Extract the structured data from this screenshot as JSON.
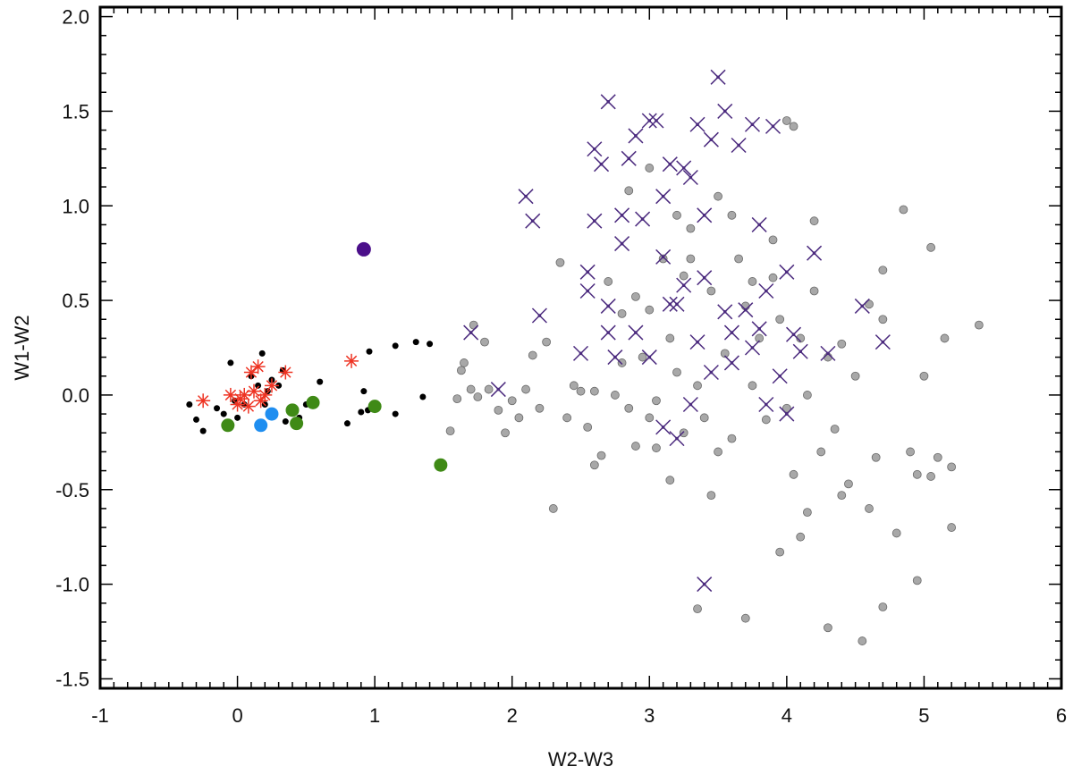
{
  "chart_data": {
    "type": "scatter",
    "title": "",
    "xlabel": "W2-W3",
    "ylabel": "W1-W2",
    "xlim": [
      -1,
      6
    ],
    "ylim": [
      -1.55,
      2.05
    ],
    "xticks": [
      "-1",
      "0",
      "1",
      "2",
      "3",
      "4",
      "5",
      "6"
    ],
    "yticks": [
      "-1.5",
      "-1.0",
      "-0.5",
      "0.0",
      "0.5",
      "1.0",
      "1.5",
      "2.0"
    ],
    "grid": false,
    "legend": "none",
    "series": [
      {
        "marker": "gray-dot",
        "color": "#a8a8a8",
        "points": [
          [
            1.55,
            -0.19
          ],
          [
            1.6,
            -0.02
          ],
          [
            1.63,
            0.13
          ],
          [
            1.65,
            0.17
          ],
          [
            1.7,
            0.03
          ],
          [
            1.72,
            0.37
          ],
          [
            1.75,
            -0.01
          ],
          [
            1.8,
            0.28
          ],
          [
            1.83,
            0.03
          ],
          [
            1.9,
            -0.08
          ],
          [
            1.95,
            -0.2
          ],
          [
            2.0,
            -0.03
          ],
          [
            2.05,
            -0.12
          ],
          [
            2.1,
            0.03
          ],
          [
            2.15,
            0.21
          ],
          [
            2.2,
            -0.07
          ],
          [
            2.25,
            0.28
          ],
          [
            2.3,
            -0.6
          ],
          [
            2.35,
            0.7
          ],
          [
            2.4,
            -0.12
          ],
          [
            2.45,
            0.05
          ],
          [
            2.5,
            0.02
          ],
          [
            2.55,
            -0.17
          ],
          [
            2.6,
            -0.37
          ],
          [
            2.6,
            0.02
          ],
          [
            2.65,
            -0.32
          ],
          [
            2.7,
            0.6
          ],
          [
            2.75,
            0.0
          ],
          [
            2.8,
            0.17
          ],
          [
            2.85,
            -0.07
          ],
          [
            2.9,
            -0.27
          ],
          [
            2.9,
            0.52
          ],
          [
            2.95,
            0.2
          ],
          [
            3.0,
            -0.12
          ],
          [
            3.0,
            0.45
          ],
          [
            3.05,
            -0.03
          ],
          [
            3.1,
            0.72
          ],
          [
            3.15,
            -0.45
          ],
          [
            3.15,
            0.3
          ],
          [
            3.2,
            0.12
          ],
          [
            3.25,
            -0.2
          ],
          [
            3.25,
            0.63
          ],
          [
            3.3,
            0.88
          ],
          [
            3.35,
            0.05
          ],
          [
            3.4,
            -0.12
          ],
          [
            3.45,
            -0.53
          ],
          [
            3.45,
            0.55
          ],
          [
            3.5,
            -0.3
          ],
          [
            3.55,
            0.22
          ],
          [
            3.6,
            -0.23
          ],
          [
            3.65,
            0.72
          ],
          [
            3.7,
            -1.18
          ],
          [
            3.7,
            0.47
          ],
          [
            3.75,
            0.05
          ],
          [
            3.8,
            0.3
          ],
          [
            3.85,
            -0.13
          ],
          [
            3.9,
            0.62
          ],
          [
            3.95,
            0.4
          ],
          [
            4.0,
            -0.07
          ],
          [
            4.0,
            1.45
          ],
          [
            4.05,
            1.42
          ],
          [
            4.05,
            -0.42
          ],
          [
            4.1,
            0.3
          ],
          [
            4.15,
            0.0
          ],
          [
            4.15,
            -0.62
          ],
          [
            4.2,
            0.55
          ],
          [
            4.25,
            -0.3
          ],
          [
            4.3,
            0.2
          ],
          [
            4.35,
            -0.18
          ],
          [
            4.4,
            0.27
          ],
          [
            4.4,
            -0.53
          ],
          [
            4.45,
            -0.47
          ],
          [
            4.5,
            0.1
          ],
          [
            4.55,
            -1.3
          ],
          [
            4.6,
            0.48
          ],
          [
            4.6,
            -0.6
          ],
          [
            4.65,
            -0.33
          ],
          [
            4.7,
            0.4
          ],
          [
            4.7,
            0.66
          ],
          [
            4.8,
            -0.73
          ],
          [
            4.85,
            0.98
          ],
          [
            4.9,
            -0.3
          ],
          [
            4.95,
            -0.42
          ],
          [
            5.0,
            0.1
          ],
          [
            5.05,
            -0.43
          ],
          [
            5.05,
            0.78
          ],
          [
            5.1,
            -0.33
          ],
          [
            5.15,
            0.3
          ],
          [
            5.2,
            -0.7
          ],
          [
            5.2,
            -0.38
          ],
          [
            5.4,
            0.37
          ],
          [
            4.3,
            -1.23
          ],
          [
            3.35,
            -1.13
          ],
          [
            3.95,
            -0.83
          ],
          [
            4.1,
            -0.75
          ],
          [
            4.95,
            -0.98
          ],
          [
            4.7,
            -1.12
          ],
          [
            3.05,
            -0.28
          ],
          [
            3.3,
            0.72
          ],
          [
            3.6,
            0.95
          ],
          [
            2.8,
            0.43
          ],
          [
            2.85,
            1.08
          ],
          [
            3.0,
            1.2
          ],
          [
            3.2,
            0.95
          ],
          [
            3.5,
            1.05
          ],
          [
            3.75,
            0.6
          ],
          [
            3.9,
            0.82
          ],
          [
            4.2,
            0.92
          ]
        ]
      },
      {
        "marker": "purple-x",
        "color": "#4b2a7e",
        "points": [
          [
            1.7,
            0.33
          ],
          [
            1.9,
            0.03
          ],
          [
            2.1,
            1.05
          ],
          [
            2.15,
            0.92
          ],
          [
            2.2,
            0.42
          ],
          [
            2.5,
            0.22
          ],
          [
            2.55,
            0.65
          ],
          [
            2.6,
            1.3
          ],
          [
            2.65,
            1.22
          ],
          [
            2.7,
            1.55
          ],
          [
            2.7,
            0.47
          ],
          [
            2.75,
            0.2
          ],
          [
            2.8,
            0.95
          ],
          [
            2.85,
            1.25
          ],
          [
            2.9,
            1.37
          ],
          [
            2.95,
            0.93
          ],
          [
            3.0,
            1.45
          ],
          [
            3.05,
            1.45
          ],
          [
            3.1,
            1.05
          ],
          [
            3.15,
            1.22
          ],
          [
            3.2,
            0.48
          ],
          [
            3.25,
            1.2
          ],
          [
            3.3,
            1.15
          ],
          [
            3.35,
            1.43
          ],
          [
            3.4,
            0.62
          ],
          [
            3.45,
            1.35
          ],
          [
            3.5,
            1.68
          ],
          [
            3.55,
            1.5
          ],
          [
            3.6,
            0.33
          ],
          [
            3.65,
            1.32
          ],
          [
            3.7,
            0.45
          ],
          [
            3.75,
            1.43
          ],
          [
            3.8,
            0.9
          ],
          [
            3.85,
            0.55
          ],
          [
            3.9,
            1.42
          ],
          [
            4.0,
            0.65
          ],
          [
            4.05,
            0.32
          ],
          [
            4.1,
            0.23
          ],
          [
            4.2,
            0.75
          ],
          [
            4.3,
            0.22
          ],
          [
            4.55,
            0.47
          ],
          [
            4.7,
            0.28
          ],
          [
            3.4,
            -1.0
          ],
          [
            3.2,
            -0.23
          ],
          [
            3.1,
            -0.17
          ],
          [
            3.3,
            -0.05
          ],
          [
            2.6,
            0.92
          ],
          [
            2.8,
            0.8
          ],
          [
            2.9,
            0.33
          ],
          [
            3.0,
            0.2
          ],
          [
            3.15,
            0.48
          ],
          [
            3.25,
            0.58
          ],
          [
            3.35,
            0.28
          ],
          [
            3.45,
            0.12
          ],
          [
            3.55,
            0.44
          ],
          [
            3.75,
            0.25
          ],
          [
            3.85,
            -0.05
          ],
          [
            3.95,
            0.1
          ],
          [
            4.0,
            -0.1
          ],
          [
            2.55,
            0.55
          ],
          [
            2.7,
            0.33
          ],
          [
            3.1,
            0.73
          ],
          [
            3.4,
            0.95
          ],
          [
            3.6,
            0.17
          ],
          [
            3.8,
            0.35
          ]
        ]
      },
      {
        "marker": "black-dot",
        "color": "#000000",
        "points": [
          [
            -0.35,
            -0.05
          ],
          [
            -0.3,
            -0.13
          ],
          [
            -0.25,
            -0.19
          ],
          [
            -0.15,
            -0.07
          ],
          [
            -0.1,
            -0.1
          ],
          [
            -0.05,
            0.17
          ],
          [
            -0.02,
            -0.03
          ],
          [
            0.0,
            -0.12
          ],
          [
            0.05,
            -0.05
          ],
          [
            0.1,
            0.1
          ],
          [
            0.15,
            0.05
          ],
          [
            0.18,
            0.22
          ],
          [
            0.2,
            -0.05
          ],
          [
            0.22,
            0.02
          ],
          [
            0.25,
            0.08
          ],
          [
            0.3,
            0.05
          ],
          [
            0.33,
            0.13
          ],
          [
            0.35,
            -0.14
          ],
          [
            0.45,
            -0.12
          ],
          [
            0.5,
            -0.05
          ],
          [
            0.6,
            0.07
          ],
          [
            0.8,
            -0.15
          ],
          [
            0.9,
            -0.09
          ],
          [
            0.92,
            0.02
          ],
          [
            0.95,
            -0.08
          ],
          [
            0.96,
            0.23
          ],
          [
            1.15,
            -0.1
          ],
          [
            1.15,
            0.26
          ],
          [
            1.3,
            0.28
          ],
          [
            1.35,
            -0.01
          ],
          [
            1.4,
            0.27
          ]
        ]
      },
      {
        "marker": "red-asterisk",
        "color": "#ee3322",
        "points": [
          [
            -0.25,
            -0.03
          ],
          [
            -0.05,
            0.0
          ],
          [
            0.0,
            -0.05
          ],
          [
            0.02,
            -0.02
          ],
          [
            0.05,
            0.0
          ],
          [
            0.08,
            -0.06
          ],
          [
            0.1,
            0.12
          ],
          [
            0.12,
            0.02
          ],
          [
            0.15,
            0.15
          ],
          [
            0.17,
            -0.03
          ],
          [
            0.2,
            0.0
          ],
          [
            0.25,
            0.05
          ],
          [
            0.35,
            0.12
          ],
          [
            0.83,
            0.18
          ]
        ]
      },
      {
        "marker": "green-dot",
        "color": "#3f8a16",
        "points": [
          [
            -0.07,
            -0.16
          ],
          [
            0.4,
            -0.08
          ],
          [
            0.43,
            -0.15
          ],
          [
            0.55,
            -0.04
          ],
          [
            1.0,
            -0.06
          ],
          [
            1.48,
            -0.37
          ]
        ]
      },
      {
        "marker": "blue-dot",
        "color": "#1f8ef0",
        "points": [
          [
            0.17,
            -0.16
          ],
          [
            0.25,
            -0.1
          ]
        ]
      },
      {
        "marker": "purple-dot",
        "color": "#4b0f8a",
        "points": [
          [
            0.92,
            0.77
          ]
        ]
      }
    ]
  }
}
